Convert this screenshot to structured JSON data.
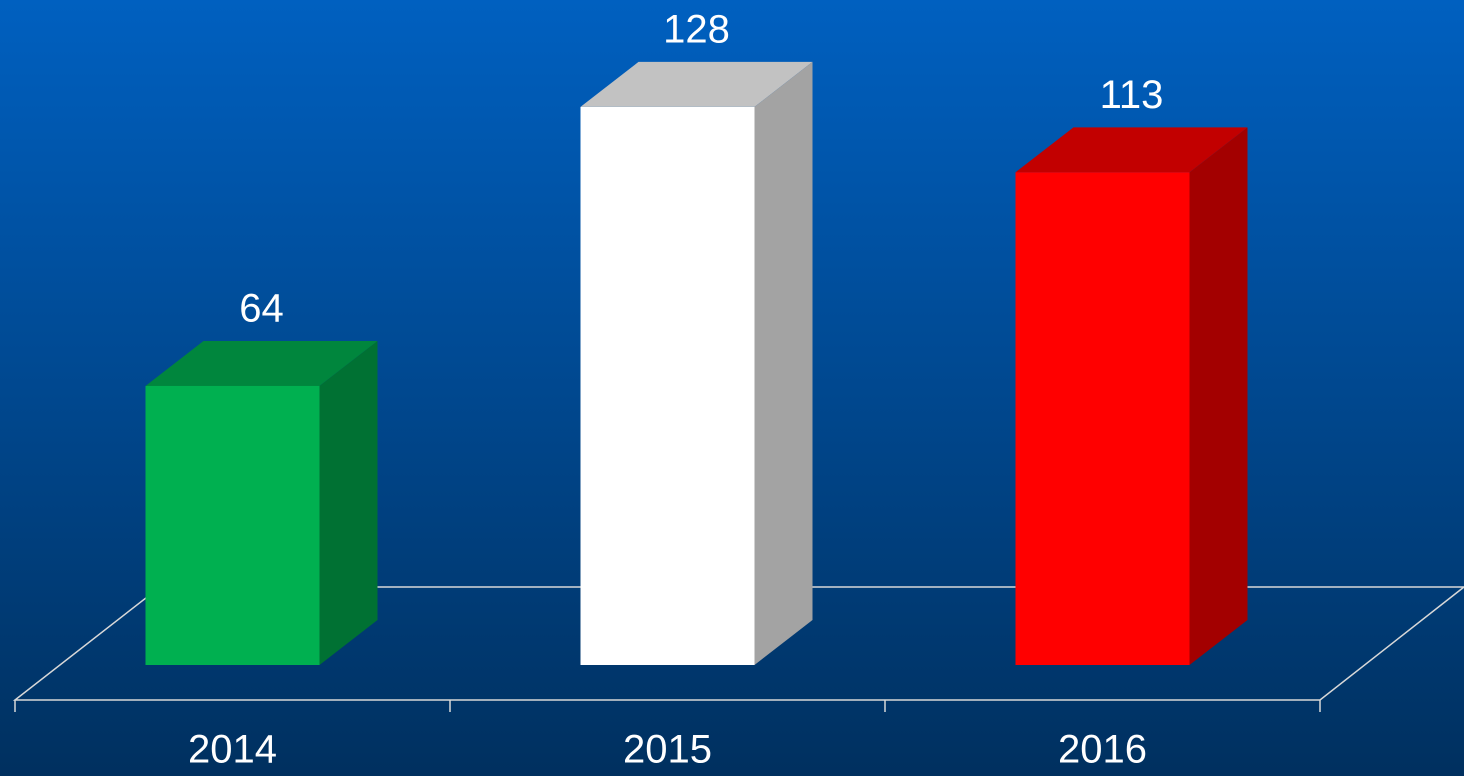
{
  "chart_data": {
    "type": "bar3d",
    "categories": [
      "2014",
      "2015",
      "2016"
    ],
    "values": [
      64,
      128,
      113
    ],
    "colors": [
      "#00b050",
      "#ffffff",
      "#ff0000"
    ]
  }
}
